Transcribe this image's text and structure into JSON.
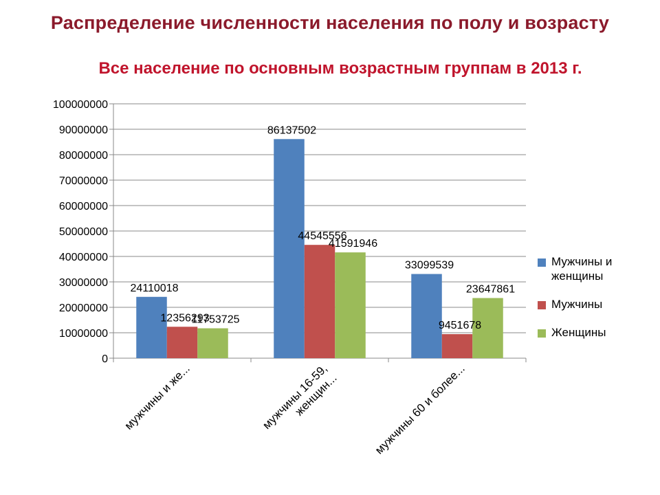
{
  "slide_title": "Распределение численности населения по полу и возрасту",
  "colors": {
    "title": "#8b1a2b",
    "chart_title": "#c0142c",
    "grid": "#888888"
  },
  "chart_data": {
    "type": "bar",
    "title": "Все население по основным возрастным группам в 2013 г.",
    "categories": [
      "мужчины и же...",
      "мужчины 16-59, женщин...",
      "мужчины 60 и более..."
    ],
    "category_lines": [
      [
        "мужчины и же..."
      ],
      [
        "мужчины 16-59,",
        "женщин..."
      ],
      [
        "мужчины 60 и более..."
      ]
    ],
    "series": [
      {
        "name": "Мужчины и женщины",
        "color": "#4f81bd",
        "values": [
          24110018,
          86137502,
          33099539
        ]
      },
      {
        "name": "Мужчины",
        "color": "#c0504d",
        "values": [
          12356293,
          44545556,
          9451678
        ]
      },
      {
        "name": "Женщины",
        "color": "#9bbb59",
        "values": [
          11753725,
          41591946,
          23647861
        ]
      }
    ],
    "value_labels": [
      [
        "24110018",
        "86137502",
        "33099539"
      ],
      [
        "12356293",
        "44545556",
        "9451678"
      ],
      [
        "11753725",
        "41591946",
        "23647861"
      ]
    ],
    "yticks": [
      "0",
      "10000000",
      "20000000",
      "30000000",
      "40000000",
      "50000000",
      "60000000",
      "70000000",
      "80000000",
      "90000000",
      "100000000"
    ],
    "ylim": [
      0,
      100000000
    ],
    "grid": true,
    "legend": "right"
  }
}
